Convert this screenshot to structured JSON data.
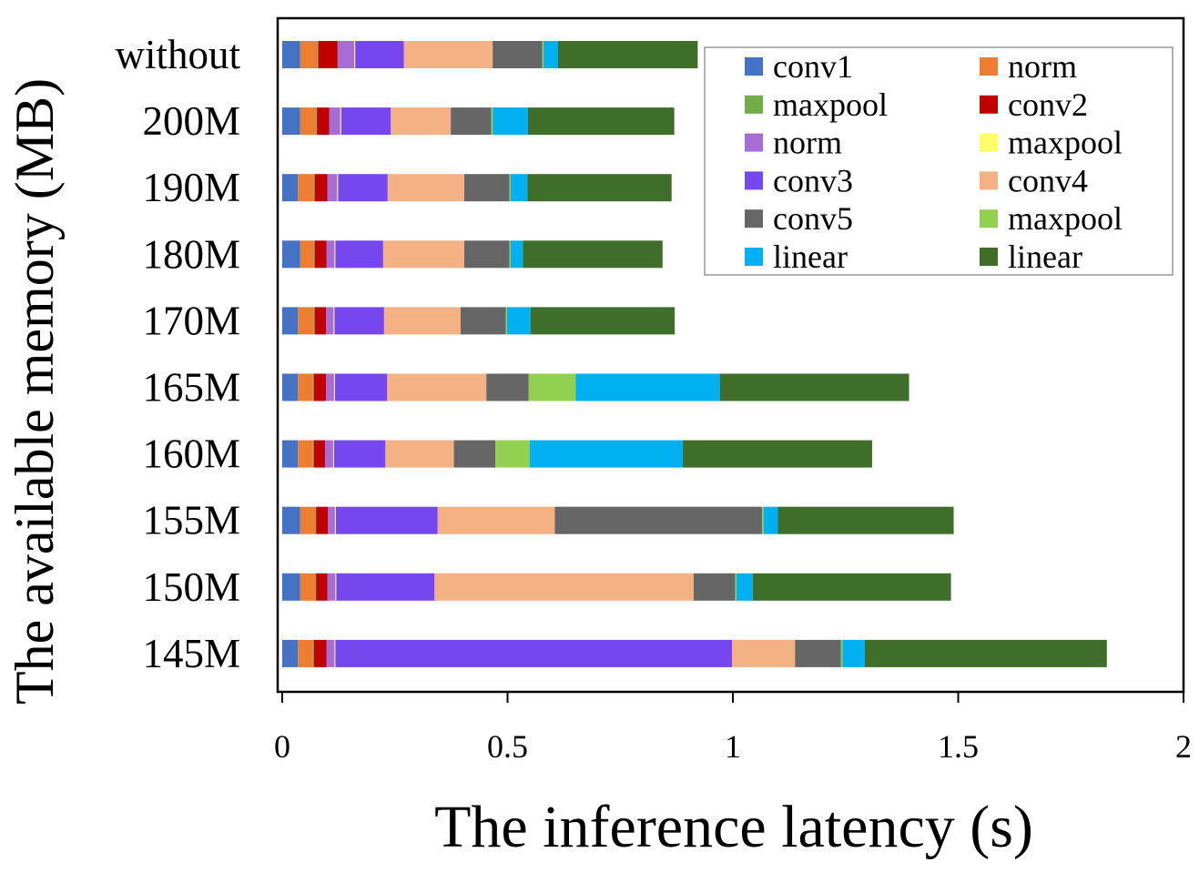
{
  "chart_data": {
    "type": "bar",
    "orientation": "horizontal",
    "stacked": true,
    "title": "",
    "xlabel": "The inference latency (s)",
    "ylabel": "The available memory (MB)",
    "xlim": [
      0,
      2
    ],
    "xticks": [
      0,
      0.5,
      1,
      1.5,
      2
    ],
    "xtick_labels": [
      "0",
      "0.5",
      "1",
      "1.5",
      "2"
    ],
    "categories": [
      "without",
      "200M",
      "190M",
      "180M",
      "170M",
      "165M",
      "160M",
      "155M",
      "150M",
      "145M"
    ],
    "legend_position": "top-right",
    "series": [
      {
        "name": "conv1",
        "color": "#4472C4",
        "values": [
          0.04,
          0.04,
          0.035,
          0.04,
          0.035,
          0.035,
          0.035,
          0.04,
          0.04,
          0.035
        ]
      },
      {
        "name": "norm",
        "color": "#ED7D31",
        "values": [
          0.038,
          0.035,
          0.035,
          0.03,
          0.035,
          0.033,
          0.033,
          0.033,
          0.033,
          0.033
        ]
      },
      {
        "name": "maxpool",
        "color": "#70AD47",
        "values": [
          0.002,
          0.002,
          0.002,
          0.002,
          0.002,
          0.002,
          0.002,
          0.002,
          0.002,
          0.002
        ]
      },
      {
        "name": "conv2",
        "color": "#C00000",
        "values": [
          0.043,
          0.027,
          0.028,
          0.026,
          0.025,
          0.027,
          0.025,
          0.026,
          0.025,
          0.028
        ]
      },
      {
        "name": "norm",
        "color": "#A66DD4",
        "values": [
          0.037,
          0.025,
          0.022,
          0.018,
          0.017,
          0.018,
          0.018,
          0.016,
          0.018,
          0.018
        ]
      },
      {
        "name": "maxpool",
        "color": "#FFFF66",
        "values": [
          0.002,
          0.002,
          0.002,
          0.002,
          0.002,
          0.002,
          0.002,
          0.002,
          0.002,
          0.002
        ]
      },
      {
        "name": "conv3",
        "color": "#7647EE",
        "values": [
          0.108,
          0.11,
          0.11,
          0.106,
          0.11,
          0.116,
          0.114,
          0.226,
          0.218,
          0.88
        ]
      },
      {
        "name": "conv4",
        "color": "#F4B183",
        "values": [
          0.197,
          0.133,
          0.17,
          0.18,
          0.17,
          0.22,
          0.152,
          0.26,
          0.575,
          0.14
        ]
      },
      {
        "name": "conv5",
        "color": "#666666",
        "values": [
          0.11,
          0.09,
          0.1,
          0.1,
          0.1,
          0.094,
          0.092,
          0.46,
          0.092,
          0.102
        ]
      },
      {
        "name": "maxpool",
        "color": "#92D050",
        "values": [
          0.003,
          0.003,
          0.003,
          0.003,
          0.003,
          0.104,
          0.076,
          0.003,
          0.003,
          0.003
        ]
      },
      {
        "name": "linear",
        "color": "#00B0F0",
        "values": [
          0.032,
          0.078,
          0.037,
          0.027,
          0.052,
          0.32,
          0.34,
          0.032,
          0.036,
          0.05
        ]
      },
      {
        "name": "linear",
        "color": "#3F6E2A",
        "values": [
          0.31,
          0.325,
          0.32,
          0.31,
          0.32,
          0.42,
          0.42,
          0.39,
          0.44,
          0.537
        ]
      }
    ]
  }
}
